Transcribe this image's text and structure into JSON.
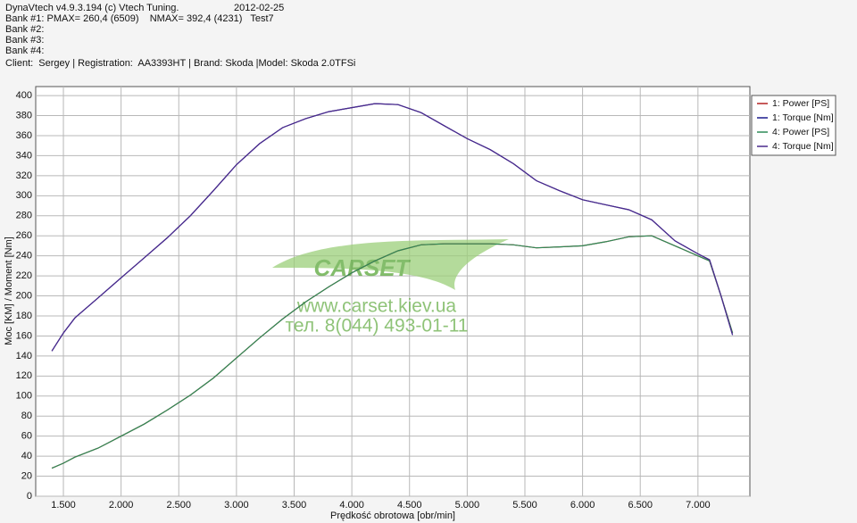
{
  "header": {
    "version": "DynaVtech v4.9.3.194 (c) Vtech Tuning.",
    "date": "2012-02-25",
    "lines": [
      "Bank #1: PMAX= 260,4 (6509)    NMAX= 392,4 (4231)   Test7",
      "Bank #2:",
      "Bank #3:",
      "Bank #4:",
      "Client:  Sergey | Registration:  AA3393HT | Brand: Skoda |Model: Skoda 2.0TFSi"
    ]
  },
  "watermark": {
    "logo": "CARSET",
    "site": "www.carset.kiev.ua",
    "phone": "тел. 8(044) 493-01-11"
  },
  "chart_data": {
    "type": "line",
    "x_label": "Prędkość obrotowa [obr/min]",
    "y_label": "Moc [KM] / Moment [Nm]",
    "x": [
      1400,
      1500,
      1600,
      1800,
      2000,
      2200,
      2400,
      2600,
      2800,
      3000,
      3200,
      3400,
      3600,
      3800,
      4000,
      4200,
      4400,
      4600,
      4800,
      5000,
      5200,
      5400,
      5600,
      5800,
      6000,
      6200,
      6400,
      6600,
      6800,
      7000,
      7100,
      7200,
      7300
    ],
    "series": [
      {
        "name": "1: Power [PS]",
        "color": "#b22222",
        "values": [
          28,
          33,
          39,
          48,
          60,
          72,
          86,
          101,
          118,
          138,
          158,
          177,
          194,
          209,
          223,
          235,
          245,
          251,
          252,
          252,
          252,
          251,
          248,
          249,
          250,
          254,
          259,
          260,
          250,
          240,
          235,
          200,
          163
        ]
      },
      {
        "name": "1: Torque [Nm]",
        "color": "#1a1a8c",
        "values": [
          145,
          163,
          178,
          198,
          218,
          238,
          258,
          280,
          305,
          331,
          352,
          368,
          377,
          384,
          388,
          392,
          391,
          383,
          370,
          357,
          346,
          332,
          315,
          305,
          296,
          291,
          286,
          276,
          255,
          242,
          236,
          200,
          161
        ]
      },
      {
        "name": "4: Power [PS]",
        "color": "#2e8b57",
        "values": [
          28,
          33,
          39,
          48,
          60,
          72,
          86,
          101,
          118,
          138,
          158,
          177,
          194,
          209,
          223,
          235,
          245,
          251,
          252,
          252,
          252,
          251,
          248,
          249,
          250,
          254,
          259,
          260,
          250,
          240,
          235,
          200,
          163
        ]
      },
      {
        "name": "4: Torque [Nm]",
        "color": "#4b2a8c",
        "values": [
          145,
          163,
          178,
          198,
          218,
          238,
          258,
          280,
          305,
          331,
          352,
          368,
          377,
          384,
          388,
          392,
          391,
          383,
          370,
          357,
          346,
          332,
          315,
          305,
          296,
          291,
          286,
          276,
          255,
          242,
          236,
          200,
          161
        ]
      }
    ],
    "xlim": [
      1260,
      7450
    ],
    "ylim": [
      0,
      409
    ],
    "xticks": [
      {
        "value": 1500,
        "label": "1.500"
      },
      {
        "value": 2000,
        "label": "2.000"
      },
      {
        "value": 2500,
        "label": "2.500"
      },
      {
        "value": 3000,
        "label": "3.000"
      },
      {
        "value": 3500,
        "label": "3.500"
      },
      {
        "value": 4000,
        "label": "4.000"
      },
      {
        "value": 4500,
        "label": "4.500"
      },
      {
        "value": 5000,
        "label": "5.000"
      },
      {
        "value": 5500,
        "label": "5.500"
      },
      {
        "value": 6000,
        "label": "6.000"
      },
      {
        "value": 6500,
        "label": "6.500"
      },
      {
        "value": 7000,
        "label": "7.000"
      }
    ],
    "yticks": [
      0,
      20,
      40,
      60,
      80,
      100,
      120,
      140,
      160,
      180,
      200,
      220,
      240,
      260,
      280,
      300,
      320,
      340,
      360,
      380,
      400
    ],
    "grid": true,
    "legend": "right"
  }
}
